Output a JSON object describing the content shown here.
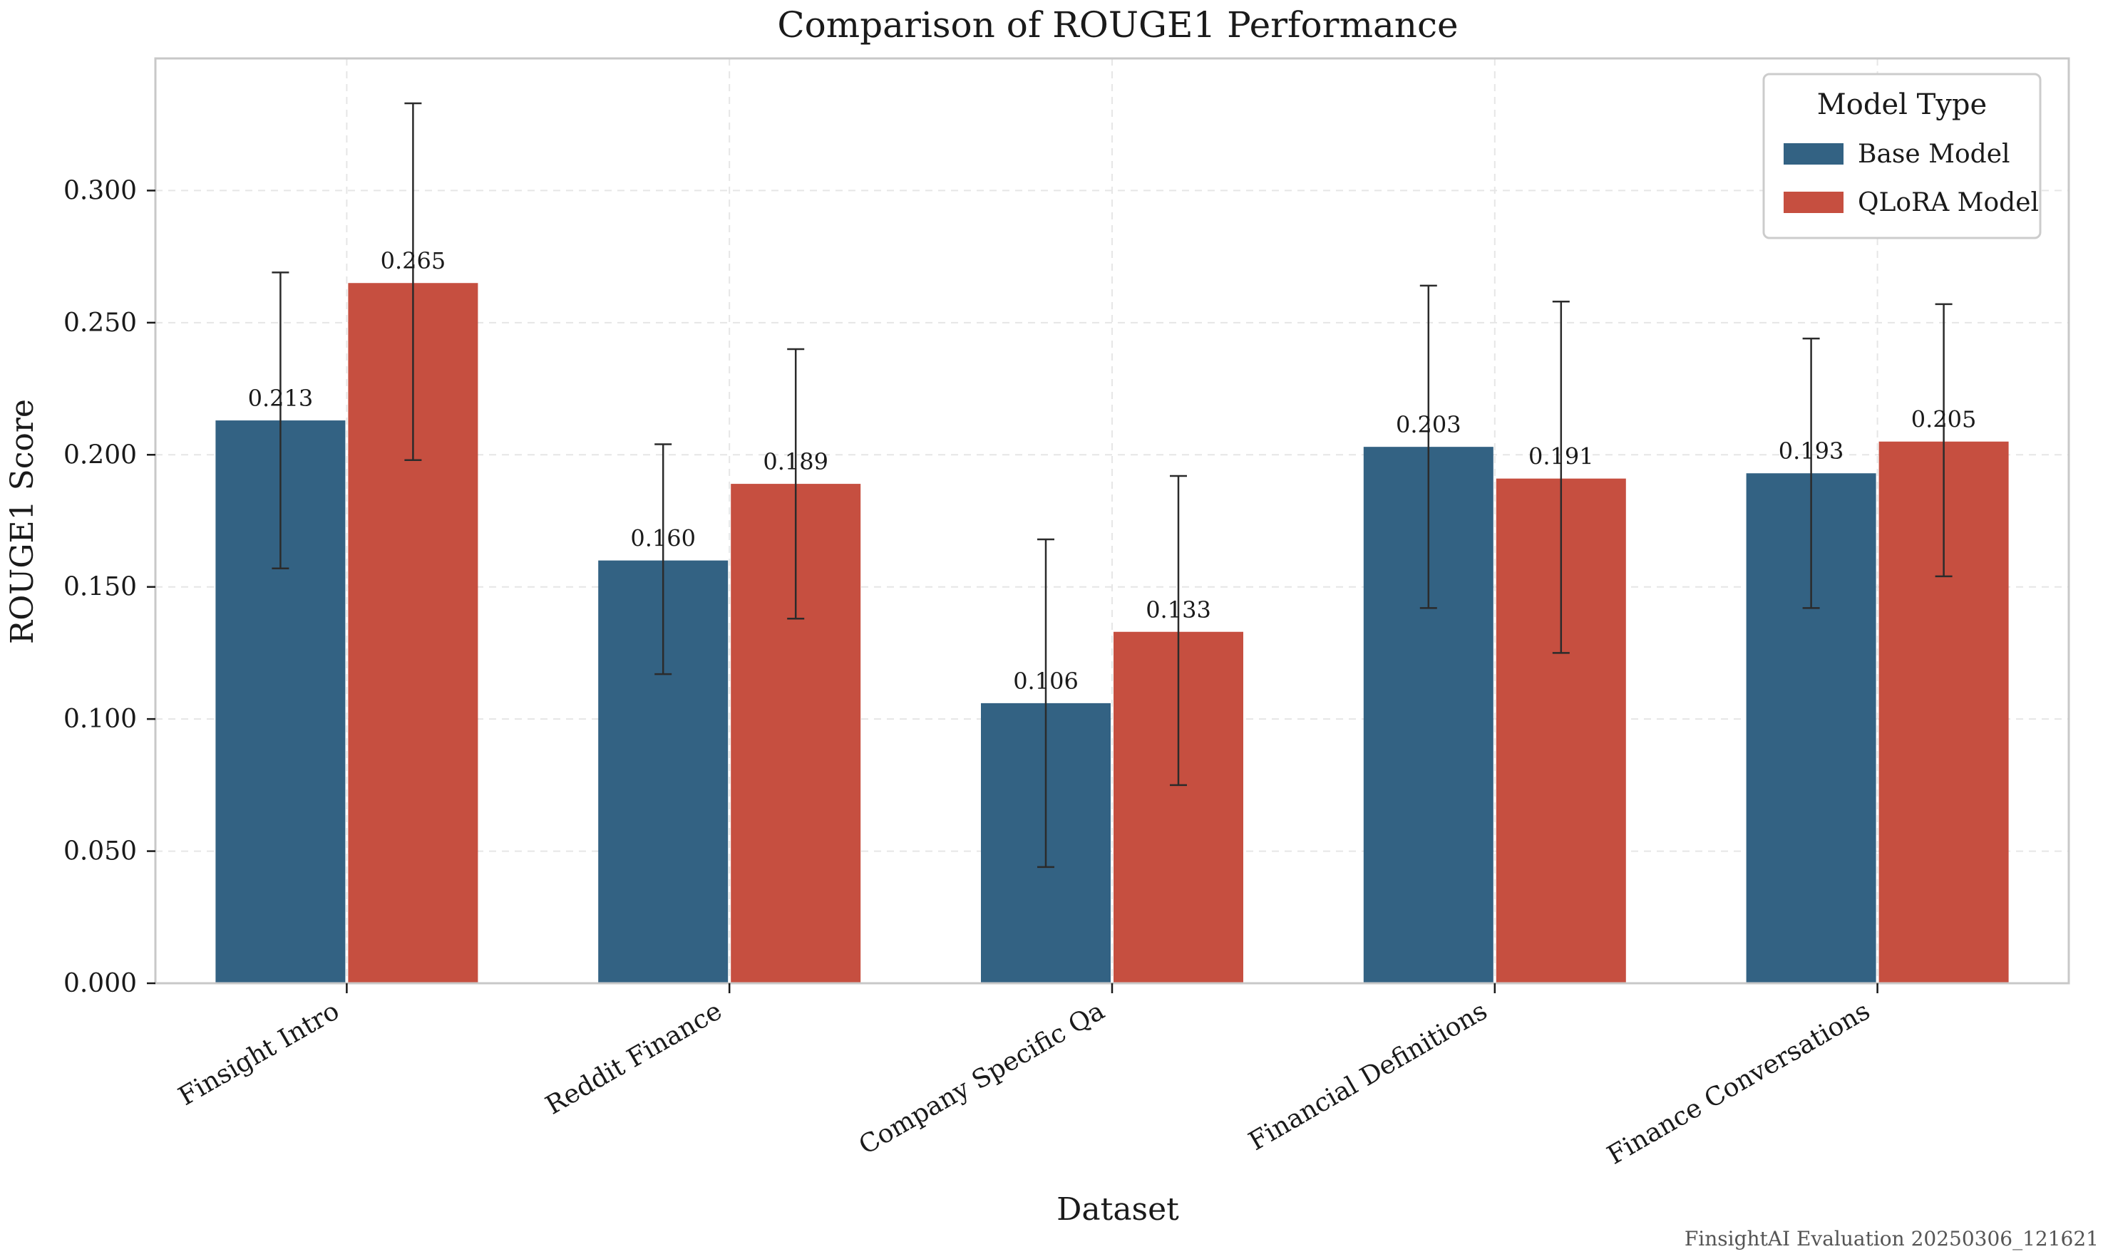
{
  "chart_data": {
    "type": "bar",
    "title": "Comparison of ROUGE1 Performance",
    "xlabel": "Dataset",
    "ylabel": "ROUGE1 Score",
    "categories": [
      "Finsight Intro",
      "Reddit Finance",
      "Company Specific Qa",
      "Financial Definitions",
      "Finance Conversations"
    ],
    "series": [
      {
        "name": "Base Model",
        "color": "#336283",
        "values": [
          0.213,
          0.16,
          0.106,
          0.203,
          0.193
        ],
        "value_labels": [
          "0.213",
          "0.160",
          "0.106",
          "0.203",
          "0.193"
        ],
        "error_low": [
          0.157,
          0.117,
          0.044,
          0.142,
          0.142
        ],
        "error_high": [
          0.269,
          0.204,
          0.168,
          0.264,
          0.244
        ]
      },
      {
        "name": "QLoRA Model",
        "color": "#c64f40",
        "values": [
          0.265,
          0.189,
          0.133,
          0.191,
          0.205
        ],
        "value_labels": [
          "0.265",
          "0.189",
          "0.133",
          "0.191",
          "0.205"
        ],
        "error_low": [
          0.198,
          0.138,
          0.075,
          0.125,
          0.154
        ],
        "error_high": [
          0.333,
          0.24,
          0.192,
          0.258,
          0.257
        ]
      }
    ],
    "ylim": [
      0,
      0.35
    ],
    "yticks": [
      0,
      0.05,
      0.1,
      0.15,
      0.2,
      0.25,
      0.3
    ],
    "ytick_labels": [
      "0.000",
      "0.050",
      "0.100",
      "0.150",
      "0.200",
      "0.250",
      "0.300"
    ],
    "grid": true,
    "legend_title": "Model Type",
    "legend_position": "top-right",
    "footer": "FinsightAI Evaluation 20250306_121621"
  }
}
